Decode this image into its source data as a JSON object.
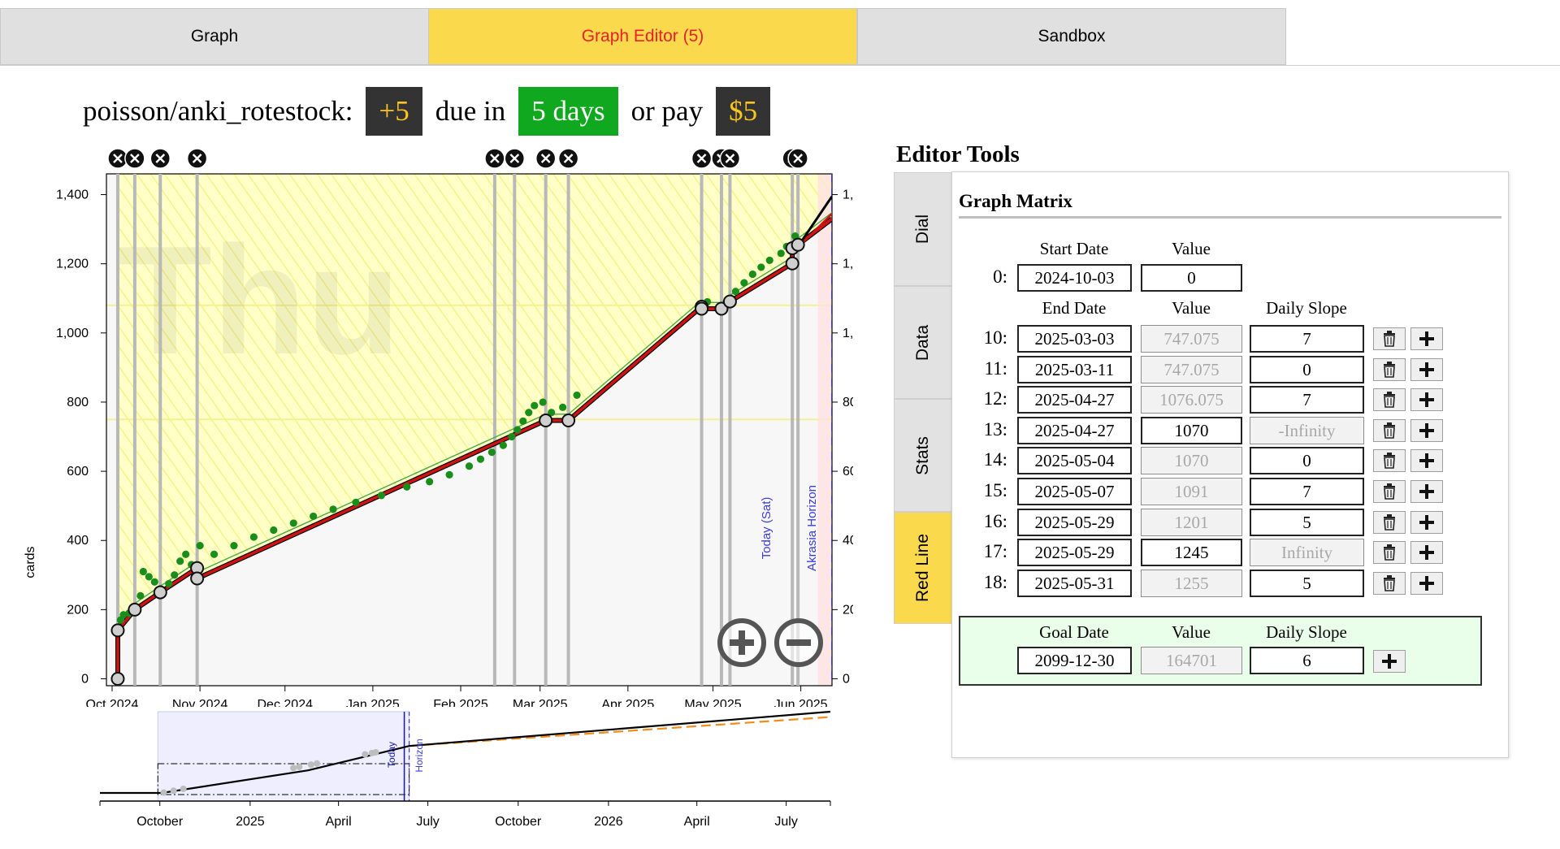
{
  "tabs": [
    {
      "label": "Graph"
    },
    {
      "label": "Graph Editor (5)"
    },
    {
      "label": "Sandbox"
    }
  ],
  "goal": {
    "slug": "poisson/anki_rotestock:",
    "delta": "+5",
    "due_text": "due in",
    "due": "5 days",
    "pay_text": "or pay",
    "pledge": "$5"
  },
  "graph": {
    "watermark": "Thu",
    "ylabel": "cards",
    "today_label": "Today (Sat)",
    "horizon_label": "Akrasia Horizon",
    "mini_today_label": "Today",
    "mini_horizon_label": "Horizon"
  },
  "chart_data": [
    {
      "type": "line",
      "title": "",
      "ylabel": "cards",
      "xlabel": "",
      "y_ticks": [
        0,
        200,
        400,
        600,
        800,
        1000,
        1200,
        1400
      ],
      "y_tick_labels": [
        "0",
        "200",
        "400",
        "600",
        "800",
        "1,000",
        "1,200",
        "1,400"
      ],
      "ylim": [
        -20,
        1460
      ],
      "x_ticks": [
        "Oct 2024",
        "Nov 2024",
        "Dec 2024",
        "Jan 2025",
        "Feb 2025",
        "Mar 2025",
        "Apr 2025",
        "May 2025",
        "Jun 2025"
      ],
      "xlim": [
        "2024-09-29",
        "2025-06-12"
      ],
      "grid": false,
      "today": "2025-06-07",
      "horizon": "2025-06-12",
      "watermark": "Thu",
      "colors": {
        "bright_red_line": "#d01212",
        "data_green": "#1a8e1a",
        "background_yellow": "#ffffc8",
        "today_line": "#3b3bd6"
      },
      "series": [
        {
          "points": [
            [
              "2024-10-03",
              0
            ],
            [
              "2024-10-03",
              140
            ],
            [
              "2024-10-09",
              200
            ],
            [
              "2024-10-18",
              250
            ],
            [
              "2024-10-31",
              320
            ],
            [
              "2024-10-31",
              290
            ],
            [
              "2025-03-03",
              747
            ],
            [
              "2025-03-11",
              747
            ],
            [
              "2025-04-27",
              1076
            ],
            [
              "2025-04-27",
              1070
            ],
            [
              "2025-05-04",
              1070
            ],
            [
              "2025-05-07",
              1091
            ],
            [
              "2025-05-29",
              1201
            ],
            [
              "2025-05-29",
              1245
            ],
            [
              "2025-05-31",
              1255
            ],
            [
              "2025-06-12",
              1330
            ]
          ]
        }
      ],
      "datapoints": [
        [
          "2024-10-04",
          170
        ],
        [
          "2024-10-05",
          185
        ],
        [
          "2024-10-07",
          190
        ],
        [
          "2024-10-09",
          205
        ],
        [
          "2024-10-11",
          240
        ],
        [
          "2024-10-12",
          310
        ],
        [
          "2024-10-14",
          295
        ],
        [
          "2024-10-16",
          280
        ],
        [
          "2024-10-18",
          260
        ],
        [
          "2024-10-21",
          275
        ],
        [
          "2024-10-23",
          300
        ],
        [
          "2024-10-25",
          340
        ],
        [
          "2024-10-27",
          360
        ],
        [
          "2024-10-29",
          330
        ],
        [
          "2024-11-01",
          385
        ],
        [
          "2024-11-06",
          360
        ],
        [
          "2024-11-13",
          385
        ],
        [
          "2024-11-20",
          410
        ],
        [
          "2024-11-27",
          430
        ],
        [
          "2024-12-04",
          450
        ],
        [
          "2024-12-11",
          470
        ],
        [
          "2024-12-18",
          490
        ],
        [
          "2024-12-26",
          510
        ],
        [
          "2025-01-04",
          530
        ],
        [
          "2025-01-13",
          555
        ],
        [
          "2025-01-21",
          570
        ],
        [
          "2025-01-28",
          590
        ],
        [
          "2025-02-04",
          615
        ],
        [
          "2025-02-08",
          635
        ],
        [
          "2025-02-12",
          655
        ],
        [
          "2025-02-16",
          675
        ],
        [
          "2025-02-19",
          700
        ],
        [
          "2025-02-21",
          720
        ],
        [
          "2025-02-23",
          745
        ],
        [
          "2025-02-25",
          770
        ],
        [
          "2025-02-27",
          790
        ],
        [
          "2025-03-02",
          800
        ],
        [
          "2025-03-05",
          770
        ],
        [
          "2025-03-09",
          785
        ],
        [
          "2025-03-14",
          820
        ],
        [
          "2025-04-29",
          1090
        ],
        [
          "2025-05-09",
          1120
        ],
        [
          "2025-05-12",
          1145
        ],
        [
          "2025-05-15",
          1170
        ],
        [
          "2025-05-18",
          1190
        ],
        [
          "2025-05-21",
          1210
        ],
        [
          "2025-05-25",
          1230
        ],
        [
          "2025-05-27",
          1250
        ],
        [
          "2025-05-30",
          1280
        ]
      ],
      "edit_markers": [
        "2024-10-03",
        "2024-10-09",
        "2024-10-18",
        "2024-10-31",
        "2025-02-13",
        "2025-02-20",
        "2025-03-03",
        "2025-03-11",
        "2025-04-27",
        "2025-05-04",
        "2025-05-07",
        "2025-05-29",
        "2025-05-31"
      ]
    },
    {
      "type": "line",
      "title": "",
      "x_ticks": [
        "October",
        "2025",
        "April",
        "July",
        "October",
        "2026",
        "April",
        "July"
      ],
      "xlim": [
        "2024-08-01",
        "2026-08-15"
      ],
      "ylim": [
        0,
        1500
      ],
      "grid": false,
      "series": [
        {
          "name": "",
          "color": "#000000",
          "points": [
            [
              "2024-08-01",
              0
            ],
            [
              "2024-10-03",
              0
            ],
            [
              "2025-03-01",
              640
            ],
            [
              "2025-06-12",
              1330
            ],
            [
              "2026-08-15",
              2300
            ]
          ]
        },
        {
          "name": "",
          "color": "#f28c1b",
          "dashed": true,
          "points": [
            [
              "2025-06-12",
              1330
            ],
            [
              "2026-08-15",
              2150
            ]
          ]
        }
      ]
    }
  ],
  "editor": {
    "title": "Editor Tools",
    "vtabs": [
      {
        "label": "Dial"
      },
      {
        "label": "Data"
      },
      {
        "label": "Stats"
      },
      {
        "label": "Red Line"
      }
    ],
    "matrix_title": "Graph Matrix",
    "start_header_date": "Start Date",
    "start_header_value": "Value",
    "start_row": {
      "index": "0:",
      "date": "2024-10-03",
      "value": "0"
    },
    "rows_header": {
      "date": "End Date",
      "value": "Value",
      "slope": "Daily Slope"
    },
    "rows": [
      {
        "index": "10:",
        "date": "2025-03-03",
        "value": "747.075",
        "slope": "7",
        "value_editable": false,
        "slope_editable": true
      },
      {
        "index": "11:",
        "date": "2025-03-11",
        "value": "747.075",
        "slope": "0",
        "value_editable": false,
        "slope_editable": true
      },
      {
        "index": "12:",
        "date": "2025-04-27",
        "value": "1076.075",
        "slope": "7",
        "value_editable": false,
        "slope_editable": true
      },
      {
        "index": "13:",
        "date": "2025-04-27",
        "value": "1070",
        "slope": "-Infinity",
        "value_editable": true,
        "slope_editable": false
      },
      {
        "index": "14:",
        "date": "2025-05-04",
        "value": "1070",
        "slope": "0",
        "value_editable": false,
        "slope_editable": true
      },
      {
        "index": "15:",
        "date": "2025-05-07",
        "value": "1091",
        "slope": "7",
        "value_editable": false,
        "slope_editable": true
      },
      {
        "index": "16:",
        "date": "2025-05-29",
        "value": "1201",
        "slope": "5",
        "value_editable": false,
        "slope_editable": true
      },
      {
        "index": "17:",
        "date": "2025-05-29",
        "value": "1245",
        "slope": "Infinity",
        "value_editable": true,
        "slope_editable": false
      },
      {
        "index": "18:",
        "date": "2025-05-31",
        "value": "1255",
        "slope": "5",
        "value_editable": false,
        "slope_editable": true
      }
    ],
    "goal_row": {
      "header_date": "Goal Date",
      "header_value": "Value",
      "header_slope": "Daily Slope",
      "date": "2099-12-30",
      "value": "164701",
      "slope": "6"
    }
  }
}
